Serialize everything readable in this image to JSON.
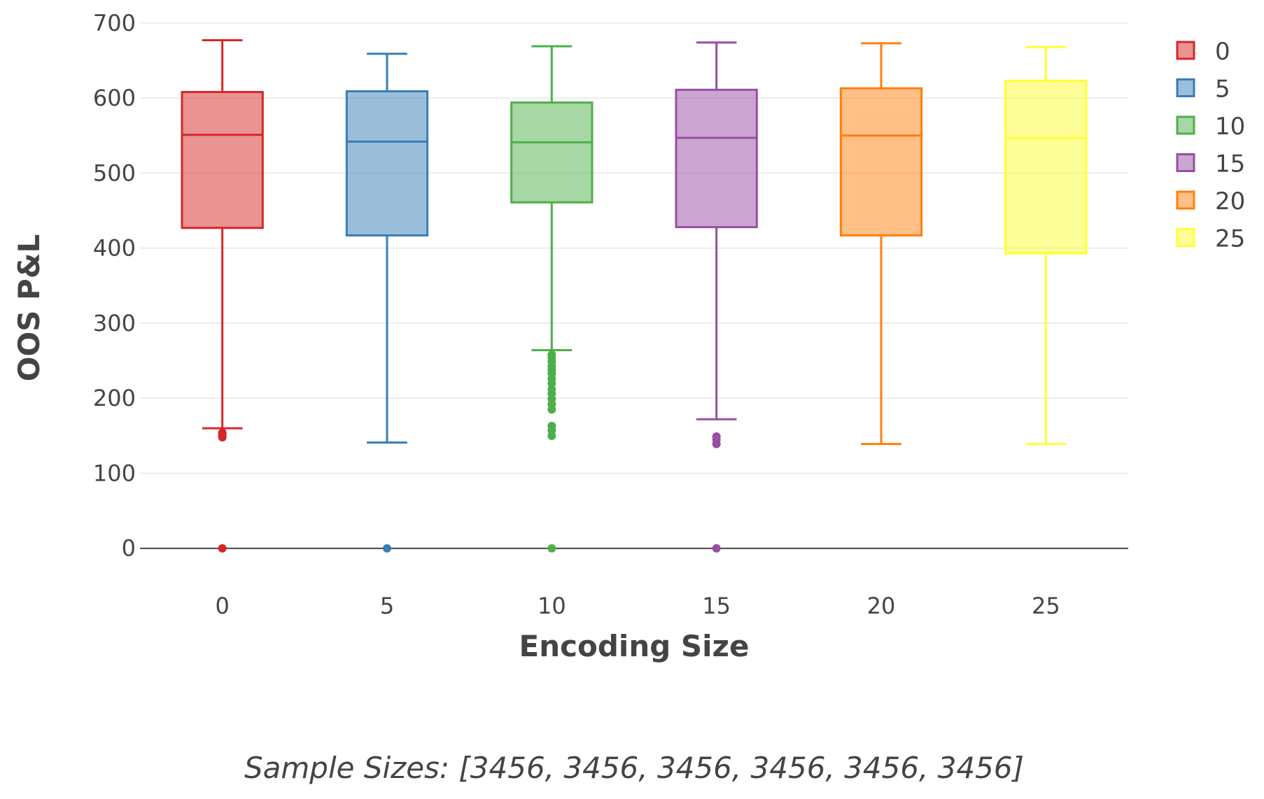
{
  "chart_data": {
    "type": "box",
    "title": "",
    "xlabel": "Encoding Size",
    "ylabel": "OOS P&L",
    "ylim": [
      -45,
      712
    ],
    "y_ticks": [
      0,
      100,
      200,
      300,
      400,
      500,
      600,
      700
    ],
    "x_ticks": [
      "0",
      "5",
      "10",
      "15",
      "20",
      "25"
    ],
    "grid": true,
    "legend_position": "top-right",
    "series": [
      {
        "name": "0",
        "color": "#d62728",
        "q1": 427,
        "median": 551,
        "q3": 608,
        "whisker_low": 160,
        "whisker_high": 677,
        "outliers": [
          148,
          150,
          152,
          154,
          0
        ]
      },
      {
        "name": "5",
        "color": "#377eb8",
        "q1": 417,
        "median": 542,
        "q3": 609,
        "whisker_low": 141,
        "whisker_high": 659,
        "outliers": [
          0
        ]
      },
      {
        "name": "10",
        "color": "#4daf4a",
        "q1": 461,
        "median": 541,
        "q3": 594,
        "whisker_low": 264,
        "whisker_high": 669,
        "outliers": [
          258,
          254,
          249,
          243,
          238,
          233,
          226,
          220,
          212,
          206,
          199,
          192,
          185,
          163,
          157,
          150,
          0
        ]
      },
      {
        "name": "15",
        "color": "#984ea3",
        "q1": 428,
        "median": 547,
        "q3": 611,
        "whisker_low": 172,
        "whisker_high": 674,
        "outliers": [
          149,
          145,
          139,
          0
        ]
      },
      {
        "name": "20",
        "color": "#ff7f0e",
        "q1": 417,
        "median": 550,
        "q3": 613,
        "whisker_low": 139,
        "whisker_high": 673,
        "outliers": []
      },
      {
        "name": "25",
        "color": "#ffff33",
        "q1": 393,
        "median": 547,
        "q3": 623,
        "whisker_low": 139,
        "whisker_high": 668,
        "outliers": []
      }
    ],
    "annotation": "Sample Sizes: [3456, 3456, 3456, 3456, 3456, 3456]"
  }
}
